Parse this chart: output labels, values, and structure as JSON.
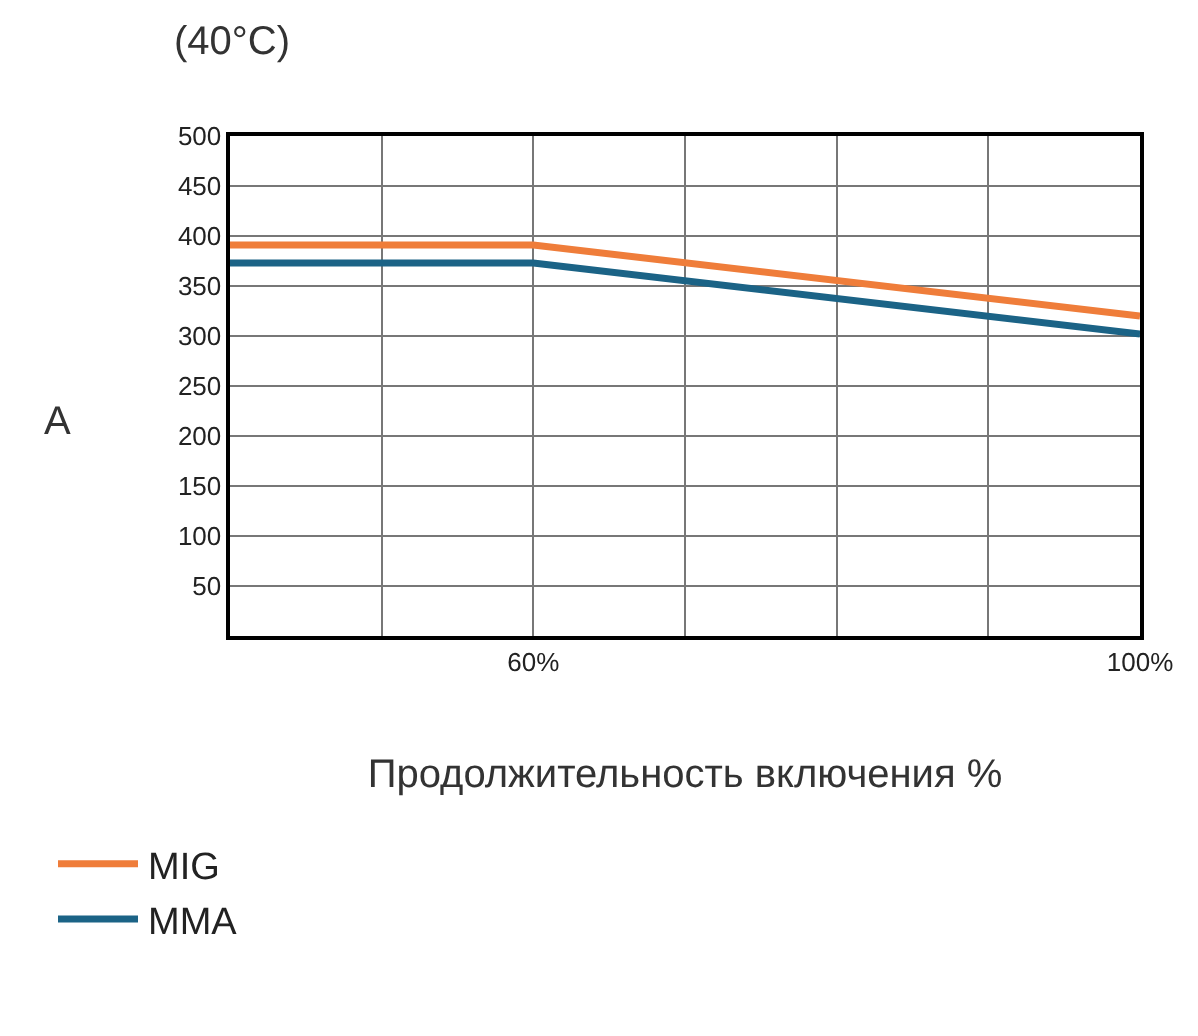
{
  "chart_data": {
    "type": "line",
    "title": "(40°C)",
    "xlabel": "Продолжительность включения %",
    "ylabel": "A",
    "x": [
      40,
      60,
      100
    ],
    "series": [
      {
        "name": "MIG",
        "color": "#ef7d3a",
        "values": [
          391,
          391,
          320
        ]
      },
      {
        "name": "MMA",
        "color": "#1b6386",
        "values": [
          373,
          373,
          302
        ]
      }
    ],
    "xlim": [
      40,
      100
    ],
    "xticks": [
      {
        "value": 50,
        "label": null
      },
      {
        "value": 60,
        "label": "60%"
      },
      {
        "value": 70,
        "label": null
      },
      {
        "value": 80,
        "label": null
      },
      {
        "value": 90,
        "label": null
      },
      {
        "value": 100,
        "label": "100%"
      }
    ],
    "ylim": [
      0,
      500
    ],
    "yticks": [
      50,
      100,
      150,
      200,
      250,
      300,
      350,
      400,
      450,
      500
    ],
    "grid": true,
    "legend": "bottom left",
    "marker": "none",
    "line_style": "solid"
  }
}
